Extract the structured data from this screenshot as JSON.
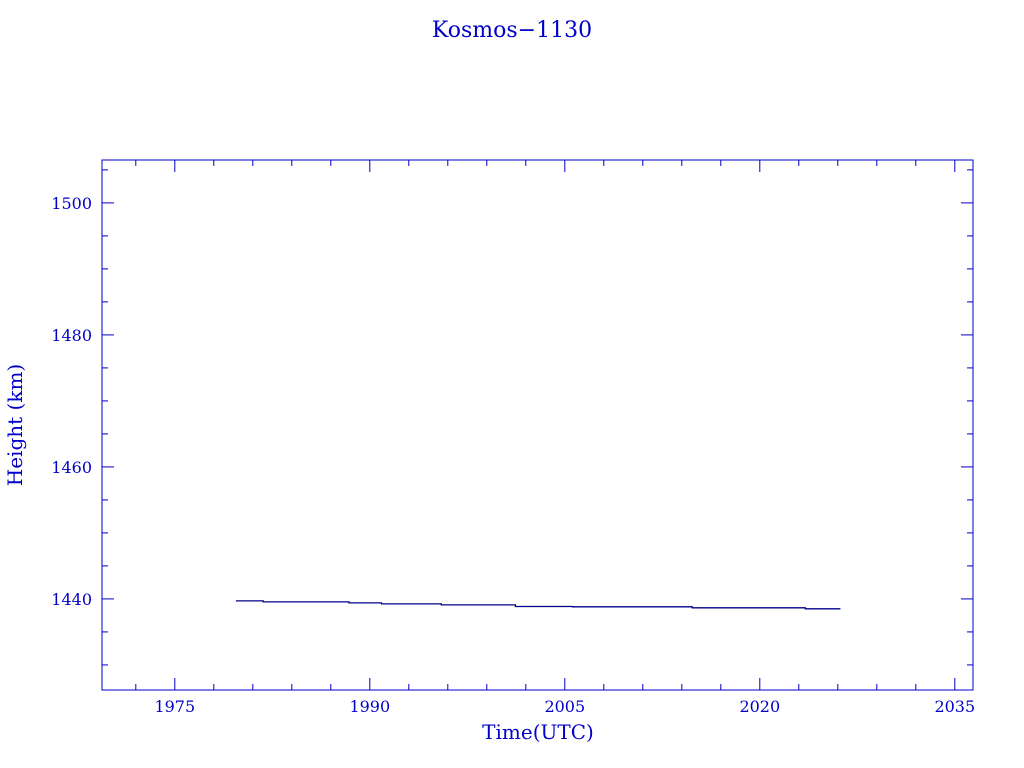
{
  "chart_data": {
    "type": "line",
    "title": "Kosmos−1130",
    "xlabel": "Time(UTC)",
    "ylabel": "Height (km)",
    "xlim": [
      1969.4,
      2036.4
    ],
    "ylim": [
      1426.2,
      1506.5
    ],
    "xticks": [
      1975,
      1990,
      2005,
      2020,
      2035
    ],
    "yticks": [
      1440,
      1460,
      1480,
      1500
    ],
    "x_minor_step": 3,
    "y_minor_step": 5,
    "grid": false,
    "step": true,
    "color": "#00008b",
    "axis_color": "#0000c8",
    "series": [
      {
        "x": [
          1979.7,
          1981.8,
          1988.4,
          1990.9,
          1995.5,
          2001.2,
          2005.6,
          2014.8,
          2023.5,
          2026.2
        ],
        "y": [
          1439.7,
          1439.55,
          1439.4,
          1439.25,
          1439.1,
          1438.85,
          1438.8,
          1438.65,
          1438.5,
          1438.5
        ]
      }
    ]
  }
}
